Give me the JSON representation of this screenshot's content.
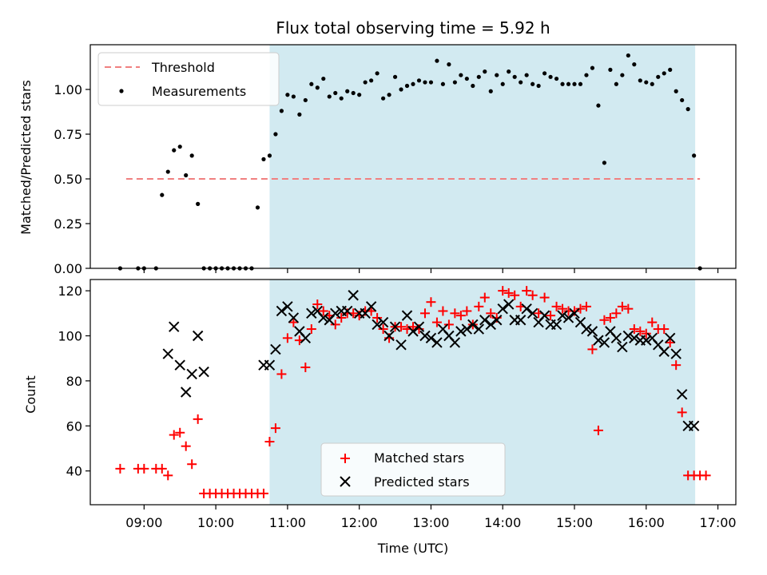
{
  "chart_data": [
    {
      "type": "scatter",
      "title": "Flux total observing time = 5.92 h",
      "xlabel": "",
      "ylabel": "Matched/Predicted stars",
      "ylim": [
        0,
        1.25
      ],
      "yticks": [
        "0.00",
        "0.25",
        "0.50",
        "0.75",
        "1.00"
      ],
      "legend": {
        "placement": "upper-left",
        "entries": [
          "Threshold",
          "Measurements"
        ]
      },
      "observing_window": {
        "start": "10:45",
        "end": "16:41",
        "color": "#add8e6"
      },
      "threshold": {
        "name": "Threshold",
        "value": 0.5,
        "x_start": "08:45",
        "x_end": "16:45",
        "color": "#f08080"
      },
      "series": [
        {
          "name": "Measurements",
          "color": "#000000",
          "marker": "dot",
          "x": [
            "08:40",
            "08:55",
            "09:00",
            "09:10",
            "09:15",
            "09:20",
            "09:25",
            "09:30",
            "09:35",
            "09:40",
            "09:45",
            "09:50",
            "09:55",
            "10:00",
            "10:05",
            "10:10",
            "10:15",
            "10:20",
            "10:25",
            "10:30",
            "10:35",
            "10:40",
            "10:45",
            "10:50",
            "10:55",
            "11:00",
            "11:05",
            "11:10",
            "11:15",
            "11:20",
            "11:25",
            "11:30",
            "11:35",
            "11:40",
            "11:45",
            "11:50",
            "11:55",
            "12:00",
            "12:05",
            "12:10",
            "12:15",
            "12:20",
            "12:25",
            "12:30",
            "12:35",
            "12:40",
            "12:45",
            "12:50",
            "12:55",
            "13:00",
            "13:05",
            "13:10",
            "13:15",
            "13:20",
            "13:25",
            "13:30",
            "13:35",
            "13:40",
            "13:45",
            "13:50",
            "13:55",
            "14:00",
            "14:05",
            "14:10",
            "14:15",
            "14:20",
            "14:25",
            "14:30",
            "14:35",
            "14:40",
            "14:45",
            "14:50",
            "14:55",
            "15:00",
            "15:05",
            "15:10",
            "15:15",
            "15:20",
            "15:25",
            "15:30",
            "15:35",
            "15:40",
            "15:45",
            "15:50",
            "15:55",
            "16:00",
            "16:05",
            "16:10",
            "16:15",
            "16:20",
            "16:25",
            "16:30",
            "16:35",
            "16:40",
            "16:45"
          ],
          "values": [
            0,
            0,
            0,
            0,
            0.41,
            0.54,
            0.66,
            0.68,
            0.52,
            0.63,
            0.36,
            0,
            0,
            0,
            0,
            0,
            0,
            0,
            0,
            0,
            0.34,
            0.61,
            0.63,
            0.75,
            0.88,
            0.97,
            0.96,
            0.86,
            0.94,
            1.03,
            1.01,
            1.06,
            0.96,
            0.98,
            0.95,
            0.99,
            0.98,
            0.97,
            1.04,
            1.05,
            1.09,
            0.95,
            0.97,
            1.07,
            1.0,
            1.02,
            1.03,
            1.05,
            1.04,
            1.04,
            1.16,
            1.03,
            1.14,
            1.04,
            1.08,
            1.06,
            1.02,
            1.07,
            1.1,
            0.99,
            1.08,
            1.03,
            1.1,
            1.07,
            1.04,
            1.08,
            1.03,
            1.02,
            1.09,
            1.07,
            1.06,
            1.03,
            1.03,
            1.03,
            1.03,
            1.08,
            1.12,
            0.91,
            0.59,
            1.11,
            1.03,
            1.08,
            1.19,
            1.14,
            1.05,
            1.04,
            1.03,
            1.07,
            1.09,
            1.11,
            0.99,
            0.94,
            0.89,
            0.63,
            0
          ]
        }
      ]
    },
    {
      "type": "scatter",
      "title": "",
      "xlabel": "Time (UTC)",
      "ylabel": "Count",
      "ylim": [
        25,
        125
      ],
      "xlim": [
        "08:15",
        "17:15"
      ],
      "xticks": [
        "09:00",
        "10:00",
        "11:00",
        "12:00",
        "13:00",
        "14:00",
        "15:00",
        "16:00",
        "17:00"
      ],
      "yticks": [
        "40",
        "60",
        "80",
        "100",
        "120"
      ],
      "legend": {
        "placement": "lower-center",
        "entries": [
          "Matched stars",
          "Predicted stars"
        ]
      },
      "series": [
        {
          "name": "Matched stars",
          "color": "#ff0000",
          "marker": "plus",
          "x": [
            "08:40",
            "08:55",
            "09:00",
            "09:10",
            "09:15",
            "09:20",
            "09:25",
            "09:30",
            "09:35",
            "09:40",
            "09:45",
            "09:50",
            "09:55",
            "10:00",
            "10:05",
            "10:10",
            "10:15",
            "10:20",
            "10:25",
            "10:30",
            "10:35",
            "10:40",
            "10:45",
            "10:50",
            "10:55",
            "11:00",
            "11:05",
            "11:10",
            "11:15",
            "11:20",
            "11:25",
            "11:30",
            "11:35",
            "11:40",
            "11:45",
            "11:50",
            "11:55",
            "12:00",
            "12:05",
            "12:10",
            "12:15",
            "12:20",
            "12:25",
            "12:30",
            "12:35",
            "12:40",
            "12:45",
            "12:50",
            "12:55",
            "13:00",
            "13:05",
            "13:10",
            "13:15",
            "13:20",
            "13:25",
            "13:30",
            "13:35",
            "13:40",
            "13:45",
            "13:50",
            "13:55",
            "14:00",
            "14:05",
            "14:10",
            "14:15",
            "14:20",
            "14:25",
            "14:30",
            "14:35",
            "14:40",
            "14:45",
            "14:50",
            "14:55",
            "15:00",
            "15:05",
            "15:10",
            "15:15",
            "15:20",
            "15:25",
            "15:30",
            "15:35",
            "15:40",
            "15:45",
            "15:50",
            "15:55",
            "16:00",
            "16:05",
            "16:10",
            "16:15",
            "16:20",
            "16:25",
            "16:30",
            "16:35",
            "16:40",
            "16:45",
            "16:50"
          ],
          "values": [
            41,
            41,
            41,
            41,
            41,
            38,
            56,
            57,
            51,
            43,
            63,
            30,
            30,
            30,
            30,
            30,
            30,
            30,
            30,
            30,
            30,
            30,
            53,
            59,
            83,
            99,
            106,
            98,
            86,
            103,
            114,
            111,
            109,
            105,
            108,
            110,
            110,
            109,
            111,
            111,
            108,
            103,
            99,
            104,
            104,
            103,
            104,
            103,
            110,
            115,
            106,
            111,
            105,
            110,
            109,
            111,
            105,
            113,
            117,
            110,
            108,
            120,
            119,
            118,
            113,
            120,
            118,
            110,
            117,
            109,
            113,
            112,
            111,
            111,
            112,
            113,
            94,
            58,
            107,
            108,
            110,
            113,
            112,
            103,
            102,
            101,
            106,
            103,
            103,
            97,
            87,
            66,
            38,
            38,
            38,
            38
          ],
          "note_values_for_tail": [
            97,
            87,
            66,
            38,
            38
          ]
        },
        {
          "name": "Predicted stars",
          "color": "#000000",
          "marker": "x",
          "x": [
            "09:20",
            "09:25",
            "09:30",
            "09:35",
            "09:40",
            "09:45",
            "09:50",
            "10:40",
            "10:45",
            "10:50",
            "10:55",
            "11:00",
            "11:05",
            "11:10",
            "11:15",
            "11:20",
            "11:25",
            "11:30",
            "11:35",
            "11:40",
            "11:45",
            "11:50",
            "11:55",
            "12:00",
            "12:05",
            "12:10",
            "12:15",
            "12:20",
            "12:25",
            "12:30",
            "12:35",
            "12:40",
            "12:45",
            "12:50",
            "12:55",
            "13:00",
            "13:05",
            "13:10",
            "13:15",
            "13:20",
            "13:25",
            "13:30",
            "13:35",
            "13:40",
            "13:45",
            "13:50",
            "13:55",
            "14:00",
            "14:05",
            "14:10",
            "14:15",
            "14:20",
            "14:25",
            "14:30",
            "14:35",
            "14:40",
            "14:45",
            "14:50",
            "14:55",
            "15:00",
            "15:05",
            "15:10",
            "15:15",
            "15:20",
            "15:25",
            "15:30",
            "15:35",
            "15:40",
            "15:45",
            "15:50",
            "15:55",
            "16:00",
            "16:05",
            "16:10",
            "16:15",
            "16:20",
            "16:25",
            "16:30",
            "16:35",
            "16:40"
          ],
          "values": [
            92,
            104,
            87,
            75,
            83,
            100,
            84,
            87,
            87,
            94,
            111,
            113,
            108,
            102,
            99,
            110,
            111,
            108,
            107,
            110,
            111,
            111,
            118,
            110,
            110,
            113,
            105,
            106,
            100,
            104,
            96,
            109,
            102,
            104,
            100,
            99,
            97,
            103,
            100,
            97,
            102,
            103,
            105,
            103,
            107,
            105,
            107,
            112,
            114,
            107,
            107,
            112,
            110,
            106,
            109,
            105,
            105,
            109,
            108,
            110,
            106,
            103,
            102,
            98,
            97,
            102,
            99,
            95,
            100,
            99,
            98,
            98,
            99,
            96,
            93,
            99,
            92,
            74,
            60,
            60
          ]
        }
      ]
    }
  ]
}
